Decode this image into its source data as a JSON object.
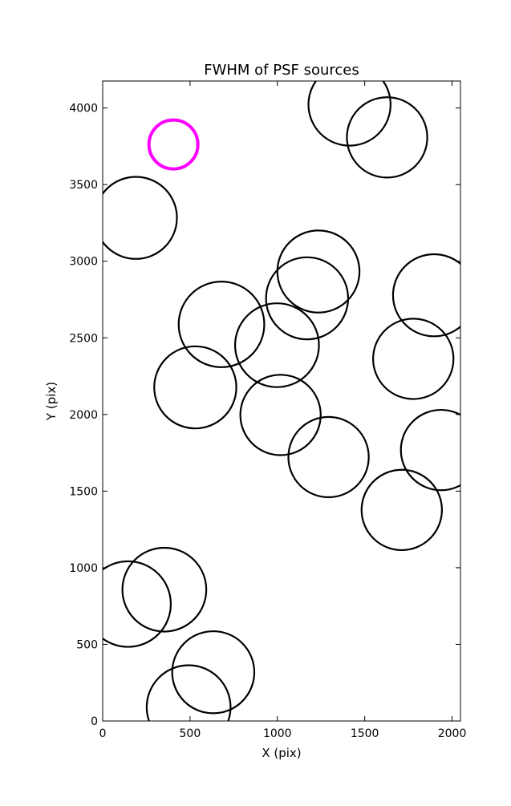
{
  "chart_data": {
    "type": "scatter",
    "title": "FWHM of PSF sources",
    "xlabel": "X (pix)",
    "ylabel": "Y (pix)",
    "xlim": [
      0,
      2048
    ],
    "ylim": [
      0,
      4176
    ],
    "xticks": [
      0,
      500,
      1000,
      1500,
      2000
    ],
    "yticks": [
      0,
      500,
      1000,
      1500,
      2000,
      2500,
      3000,
      3500,
      4000
    ],
    "xtick_labels": [
      "0",
      "500",
      "1000",
      "1500",
      "2000"
    ],
    "ytick_labels": [
      "0",
      "500",
      "1000",
      "1500",
      "2000",
      "2500",
      "3000",
      "3500",
      "4000"
    ],
    "grid": false,
    "legend": false,
    "marker": "open circle (radius proportional to FWHM)",
    "colors": {
      "sources": "#000000",
      "highlight": "#ff00ff",
      "axes": "#000000"
    },
    "series": [
      {
        "points": [
          {
            "x": 190,
            "y": 3283,
            "r": 235
          },
          {
            "x": 1413,
            "y": 4022,
            "r": 235
          },
          {
            "x": 1628,
            "y": 3808,
            "r": 230
          },
          {
            "x": 1235,
            "y": 2933,
            "r": 235
          },
          {
            "x": 1170,
            "y": 2758,
            "r": 235
          },
          {
            "x": 680,
            "y": 2588,
            "r": 245
          },
          {
            "x": 998,
            "y": 2452,
            "r": 240
          },
          {
            "x": 1897,
            "y": 2778,
            "r": 235
          },
          {
            "x": 1778,
            "y": 2363,
            "r": 230
          },
          {
            "x": 530,
            "y": 2177,
            "r": 235
          },
          {
            "x": 1018,
            "y": 1997,
            "r": 230
          },
          {
            "x": 1293,
            "y": 1722,
            "r": 230
          },
          {
            "x": 1937,
            "y": 1768,
            "r": 230
          },
          {
            "x": 1712,
            "y": 1377,
            "r": 230
          },
          {
            "x": 145,
            "y": 763,
            "r": 245
          },
          {
            "x": 353,
            "y": 857,
            "r": 240
          },
          {
            "x": 633,
            "y": 318,
            "r": 235
          },
          {
            "x": 492,
            "y": 90,
            "r": 240
          }
        ]
      },
      {
        "highlight": true,
        "points": [
          {
            "x": 405,
            "y": 3762,
            "r": 140
          }
        ]
      }
    ]
  }
}
